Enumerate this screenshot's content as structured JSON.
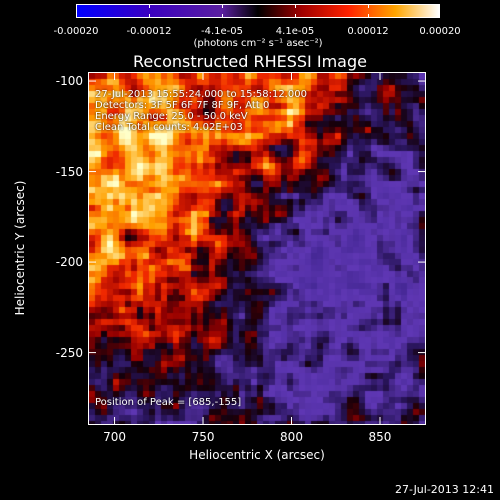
{
  "colorbar": {
    "tick_labels": [
      "-0.00020",
      "-0.00012",
      "-4.1e-05",
      "4.1e-05",
      "0.00012",
      "0.00020"
    ],
    "units": "(photons cm⁻² s⁻¹ asec⁻²)"
  },
  "chart_data": {
    "type": "heatmap",
    "title": "Reconstructed RHESSI Image",
    "xlabel": "Heliocentric X (arcsec)",
    "ylabel": "Heliocentric Y (arcsec)",
    "xlim": [
      685,
      876
    ],
    "ylim": [
      -290,
      -95
    ],
    "xticks": [
      700,
      750,
      800,
      850
    ],
    "yticks": [
      -100,
      -150,
      -200,
      -250
    ],
    "colorbar_range": [
      -0.0002,
      0.0002
    ],
    "peak": [
      685,
      -155
    ],
    "annotations": [
      "27-Jul-2013 15:55:24.000 to 15:58:12.000",
      "Detectors: 3F 5F 6F 7F 8F 9F, Att 0",
      "Energy Range: 25.0 - 50.0 keV",
      "Clean    Total counts: 4.02E+03"
    ],
    "peak_label": "Position of Peak = [685,-155]"
  },
  "footer": {
    "timestamp": "27-Jul-2013 12:41"
  },
  "colors": {
    "background": "#000000",
    "foreground": "#ffffff"
  }
}
